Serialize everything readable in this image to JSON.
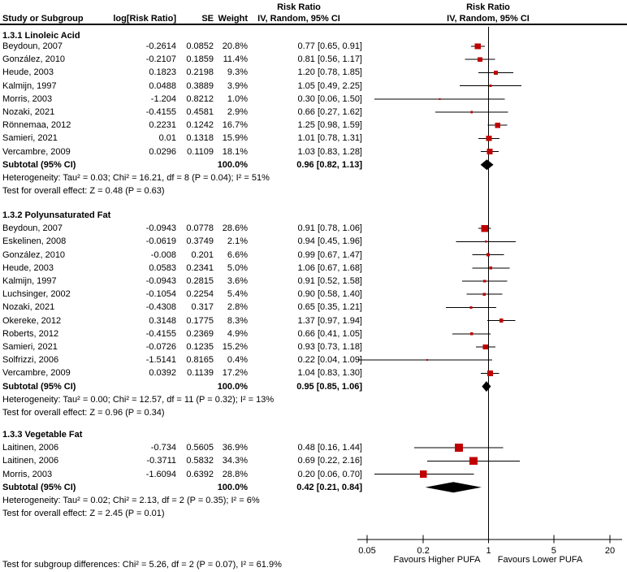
{
  "header": {
    "study": "Study or Subgroup",
    "log_rr": "log[Risk Ratio]",
    "se": "SE",
    "weight": "Weight",
    "rr_text_col": {
      "line1": "Risk Ratio",
      "line2": "IV, Random, 95% CI"
    },
    "rr_plot_col": {
      "line1": "Risk Ratio",
      "line2": "IV, Random, 95% CI"
    }
  },
  "colors": {
    "marker_fill": "#c00000",
    "diamond_fill": "#000000",
    "line": "#000000",
    "text": "#000000",
    "background": "#ffffff"
  },
  "chart_data": {
    "type": "forest",
    "effect_measure": "Risk Ratio",
    "model": "IV, Random, 95% CI",
    "x_axis": {
      "scale": "log",
      "ticks": [
        0.05,
        0.2,
        1,
        5,
        20
      ],
      "tick_labels": [
        "0.05",
        "0.2",
        "1",
        "5",
        "20"
      ],
      "null_value": 1,
      "left_label": "Favours Higher PUFA",
      "right_label": "Favours Lower PUFA"
    },
    "groups": [
      {
        "title": "1.3.1 Linoleic Acid",
        "studies": [
          {
            "study": "Beydoun, 2007",
            "log_rr": "-0.2614",
            "se": "0.0852",
            "weight": "20.8%",
            "weight_pct": 20.8,
            "rr": 0.77,
            "ci_low": 0.65,
            "ci_high": 0.91,
            "ci_text": "0.77 [0.65, 0.91]"
          },
          {
            "study": "González, 2010",
            "log_rr": "-0.2107",
            "se": "0.1859",
            "weight": "11.4%",
            "weight_pct": 11.4,
            "rr": 0.81,
            "ci_low": 0.56,
            "ci_high": 1.17,
            "ci_text": "0.81 [0.56, 1.17]"
          },
          {
            "study": "Heude, 2003",
            "log_rr": "0.1823",
            "se": "0.2198",
            "weight": "9.3%",
            "weight_pct": 9.3,
            "rr": 1.2,
            "ci_low": 0.78,
            "ci_high": 1.85,
            "ci_text": "1.20 [0.78, 1.85]"
          },
          {
            "study": "Kalmijn, 1997",
            "log_rr": "0.0488",
            "se": "0.3889",
            "weight": "3.9%",
            "weight_pct": 3.9,
            "rr": 1.05,
            "ci_low": 0.49,
            "ci_high": 2.25,
            "ci_text": "1.05 [0.49, 2.25]"
          },
          {
            "study": "Morris, 2003",
            "log_rr": "-1.204",
            "se": "0.8212",
            "weight": "1.0%",
            "weight_pct": 1.0,
            "rr": 0.3,
            "ci_low": 0.06,
            "ci_high": 1.5,
            "ci_text": "0.30 [0.06, 1.50]"
          },
          {
            "study": "Nozaki, 2021",
            "log_rr": "-0.4155",
            "se": "0.4581",
            "weight": "2.9%",
            "weight_pct": 2.9,
            "rr": 0.66,
            "ci_low": 0.27,
            "ci_high": 1.62,
            "ci_text": "0.66 [0.27, 1.62]"
          },
          {
            "study": "Rönnemaa, 2012",
            "log_rr": "0.2231",
            "se": "0.1242",
            "weight": "16.7%",
            "weight_pct": 16.7,
            "rr": 1.25,
            "ci_low": 0.98,
            "ci_high": 1.59,
            "ci_text": "1.25 [0.98, 1.59]"
          },
          {
            "study": "Samieri, 2021",
            "log_rr": "0.01",
            "se": "0.1318",
            "weight": "15.9%",
            "weight_pct": 15.9,
            "rr": 1.01,
            "ci_low": 0.78,
            "ci_high": 1.31,
            "ci_text": "1.01 [0.78, 1.31]"
          },
          {
            "study": "Vercambre, 2009",
            "log_rr": "0.0296",
            "se": "0.1109",
            "weight": "18.1%",
            "weight_pct": 18.1,
            "rr": 1.03,
            "ci_low": 0.83,
            "ci_high": 1.28,
            "ci_text": "1.03 [0.83, 1.28]"
          }
        ],
        "subtotal": {
          "label": "Subtotal (95% CI)",
          "weight": "100.0%",
          "rr": 0.96,
          "ci_low": 0.82,
          "ci_high": 1.13,
          "ci_text": "0.96 [0.82, 1.13]"
        },
        "heterogeneity": "Heterogeneity: Tau² = 0.03; Chi² = 16.21, df = 8 (P = 0.04); I² = 51%",
        "overall_effect": "Test for overall effect: Z = 0.48 (P = 0.63)"
      },
      {
        "title": "1.3.2 Polyunsaturated Fat",
        "studies": [
          {
            "study": "Beydoun, 2007",
            "log_rr": "-0.0943",
            "se": "0.0778",
            "weight": "28.6%",
            "weight_pct": 28.6,
            "rr": 0.91,
            "ci_low": 0.78,
            "ci_high": 1.06,
            "ci_text": "0.91 [0.78, 1.06]"
          },
          {
            "study": "Eskelinen, 2008",
            "log_rr": "-0.0619",
            "se": "0.3749",
            "weight": "2.1%",
            "weight_pct": 2.1,
            "rr": 0.94,
            "ci_low": 0.45,
            "ci_high": 1.96,
            "ci_text": "0.94 [0.45, 1.96]"
          },
          {
            "study": "González, 2010",
            "log_rr": "-0.008",
            "se": "0.201",
            "weight": "6.6%",
            "weight_pct": 6.6,
            "rr": 0.99,
            "ci_low": 0.67,
            "ci_high": 1.47,
            "ci_text": "0.99 [0.67, 1.47]"
          },
          {
            "study": "Heude, 2003",
            "log_rr": "0.0583",
            "se": "0.2341",
            "weight": "5.0%",
            "weight_pct": 5.0,
            "rr": 1.06,
            "ci_low": 0.67,
            "ci_high": 1.68,
            "ci_text": "1.06 [0.67, 1.68]"
          },
          {
            "study": "Kalmijn, 1997",
            "log_rr": "-0.0943",
            "se": "0.2815",
            "weight": "3.6%",
            "weight_pct": 3.6,
            "rr": 0.91,
            "ci_low": 0.52,
            "ci_high": 1.58,
            "ci_text": "0.91 [0.52, 1.58]"
          },
          {
            "study": "Luchsinger, 2002",
            "log_rr": "-0.1054",
            "se": "0.2254",
            "weight": "5.4%",
            "weight_pct": 5.4,
            "rr": 0.9,
            "ci_low": 0.58,
            "ci_high": 1.4,
            "ci_text": "0.90 [0.58, 1.40]"
          },
          {
            "study": "Nozaki, 2021",
            "log_rr": "-0.4308",
            "se": "0.317",
            "weight": "2.8%",
            "weight_pct": 2.8,
            "rr": 0.65,
            "ci_low": 0.35,
            "ci_high": 1.21,
            "ci_text": "0.65 [0.35, 1.21]"
          },
          {
            "study": "Okereke, 2012",
            "log_rr": "0.3148",
            "se": "0.1775",
            "weight": "8.3%",
            "weight_pct": 8.3,
            "rr": 1.37,
            "ci_low": 0.97,
            "ci_high": 1.94,
            "ci_text": "1.37 [0.97, 1.94]"
          },
          {
            "study": "Roberts, 2012",
            "log_rr": "-0.4155",
            "se": "0.2369",
            "weight": "4.9%",
            "weight_pct": 4.9,
            "rr": 0.66,
            "ci_low": 0.41,
            "ci_high": 1.05,
            "ci_text": "0.66 [0.41, 1.05]"
          },
          {
            "study": "Samieri, 2021",
            "log_rr": "-0.0726",
            "se": "0.1235",
            "weight": "15.2%",
            "weight_pct": 15.2,
            "rr": 0.93,
            "ci_low": 0.73,
            "ci_high": 1.18,
            "ci_text": "0.93 [0.73, 1.18]"
          },
          {
            "study": "Solfrizzi, 2006",
            "log_rr": "-1.5141",
            "se": "0.8165",
            "weight": "0.4%",
            "weight_pct": 0.4,
            "rr": 0.22,
            "ci_low": 0.04,
            "ci_high": 1.09,
            "ci_text": "0.22 [0.04, 1.09]"
          },
          {
            "study": "Vercambre, 2009",
            "log_rr": "0.0392",
            "se": "0.1139",
            "weight": "17.2%",
            "weight_pct": 17.2,
            "rr": 1.04,
            "ci_low": 0.83,
            "ci_high": 1.3,
            "ci_text": "1.04 [0.83, 1.30]"
          }
        ],
        "subtotal": {
          "label": "Subtotal (95% CI)",
          "weight": "100.0%",
          "rr": 0.95,
          "ci_low": 0.85,
          "ci_high": 1.06,
          "ci_text": "0.95 [0.85, 1.06]"
        },
        "heterogeneity": "Heterogeneity: Tau² = 0.00; Chi² = 12.57, df = 11 (P = 0.32); I² = 13%",
        "overall_effect": "Test for overall effect: Z = 0.96 (P = 0.34)"
      },
      {
        "title": "1.3.3 Vegetable Fat",
        "studies": [
          {
            "study": "Laitinen, 2006",
            "log_rr": "-0.734",
            "se": "0.5605",
            "weight": "36.9%",
            "weight_pct": 36.9,
            "rr": 0.48,
            "ci_low": 0.16,
            "ci_high": 1.44,
            "ci_text": "0.48 [0.16, 1.44]"
          },
          {
            "study": "Laitinen, 2006",
            "log_rr": "-0.3711",
            "se": "0.5832",
            "weight": "34.3%",
            "weight_pct": 34.3,
            "rr": 0.69,
            "ci_low": 0.22,
            "ci_high": 2.16,
            "ci_text": "0.69 [0.22, 2.16]"
          },
          {
            "study": "Morris, 2003",
            "log_rr": "-1.6094",
            "se": "0.6392",
            "weight": "28.8%",
            "weight_pct": 28.8,
            "rr": 0.2,
            "ci_low": 0.06,
            "ci_high": 0.7,
            "ci_text": "0.20 [0.06, 0.70]"
          }
        ],
        "subtotal": {
          "label": "Subtotal (95% CI)",
          "weight": "100.0%",
          "rr": 0.42,
          "ci_low": 0.21,
          "ci_high": 0.84,
          "ci_text": "0.42 [0.21, 0.84]"
        },
        "heterogeneity": "Heterogeneity: Tau² = 0.02; Chi² = 2.13, df = 2 (P = 0.35); I² = 6%",
        "overall_effect": "Test for overall effect: Z = 2.45 (P = 0.01)"
      }
    ],
    "footer": "Test for subgroup differences: Chi² = 5.26, df = 2 (P = 0.07), I² = 61.9%"
  }
}
